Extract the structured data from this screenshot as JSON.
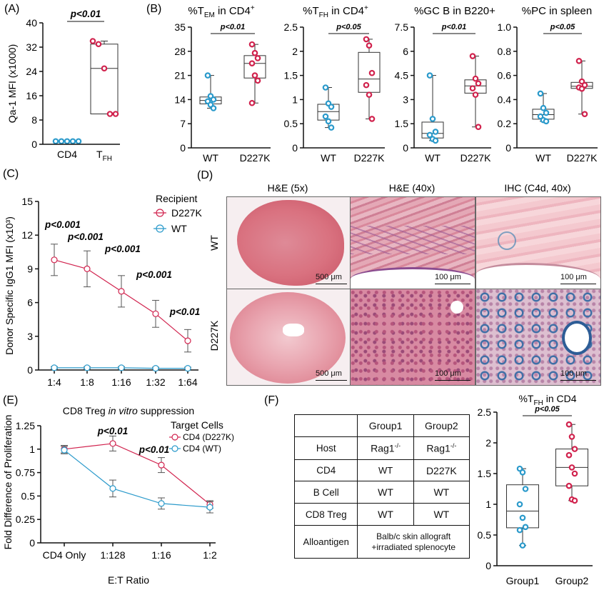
{
  "panels": {
    "A": "(A)",
    "B": "(B)",
    "C": "(C)",
    "D": "(D)",
    "E": "(E)",
    "F": "(F)"
  },
  "colors": {
    "d227k": "#d1234e",
    "wt": "#2b9acb"
  },
  "panel_d": {
    "columns": [
      "H&E (5x)",
      "H&E (40x)",
      "IHC (C4d, 40x)"
    ],
    "rows": [
      "WT",
      "D227K"
    ],
    "scale_5x": "500 μm",
    "scale_40x": "100 μm"
  },
  "panel_f_table": {
    "header": [
      "",
      "Group1",
      "Group2"
    ],
    "rows": [
      {
        "label": "Host",
        "g1": "Rag1",
        "g1_sup": "-/-",
        "g2": "Rag1",
        "g2_sup": "-/-"
      },
      {
        "label": "CD4",
        "g1": "WT",
        "g2": "D227K"
      },
      {
        "label": "B Cell",
        "g1": "WT",
        "g2": "WT"
      },
      {
        "label": "CD8 Treg",
        "g1": "WT",
        "g2": "WT"
      },
      {
        "label": "Alloantigen",
        "g12_line1": "Balb/c skin allograft",
        "g12_line2": "+irradiated splenocyte"
      }
    ]
  },
  "chart_data": [
    {
      "id": "A",
      "type": "box",
      "categories": [
        "CD4",
        "TFH"
      ],
      "ylabel": "Qa-1 MFI (x1000)",
      "ylim": [
        0,
        40
      ],
      "yticks": [
        0,
        8,
        16,
        24,
        32,
        40
      ],
      "pvalue": "p<0.01",
      "series": [
        {
          "values": [
            1,
            1,
            1,
            1,
            1
          ]
        },
        {
          "values": [
            34,
            33,
            25,
            10,
            10
          ]
        }
      ]
    },
    {
      "id": "B1",
      "type": "box",
      "title": "%TEM in CD4+",
      "categories": [
        "WT",
        "D227K"
      ],
      "ylim": [
        0,
        35
      ],
      "yticks": [
        0,
        7,
        14,
        21,
        28,
        35
      ],
      "pvalue": "p<0.01",
      "series": [
        {
          "values": [
            21,
            15,
            14,
            13.5,
            12.5,
            11.5
          ]
        },
        {
          "values": [
            30,
            27.5,
            26,
            24.5,
            21,
            19.5,
            13
          ]
        }
      ]
    },
    {
      "id": "B2",
      "type": "box",
      "title": "%TFH in CD4+",
      "categories": [
        "WT",
        "D227K"
      ],
      "ylim": [
        0,
        2.5
      ],
      "yticks": [
        0,
        0.5,
        1,
        1.5,
        2,
        2.5
      ],
      "pvalue": "p<0.05",
      "series": [
        {
          "values": [
            1.25,
            0.92,
            0.85,
            0.65,
            0.55,
            0.42
          ]
        },
        {
          "values": [
            2.25,
            2.12,
            1.55,
            1.3,
            1.1,
            0.6
          ]
        }
      ]
    },
    {
      "id": "B3",
      "type": "box",
      "title": "%GC B in B220+",
      "categories": [
        "WT",
        "D227K"
      ],
      "ylim": [
        0,
        7.5
      ],
      "yticks": [
        0,
        1.5,
        3,
        4.5,
        6,
        7.5
      ],
      "pvalue": "p<0.01",
      "series": [
        {
          "values": [
            4.5,
            1.8,
            1.0,
            0.8,
            0.55,
            0.45
          ]
        },
        {
          "values": [
            5.7,
            4.3,
            4.0,
            3.7,
            3.3,
            1.3
          ]
        }
      ]
    },
    {
      "id": "B4",
      "type": "box",
      "title": "%PC in spleen",
      "categories": [
        "WT",
        "D227K"
      ],
      "ylim": [
        0,
        1.0
      ],
      "yticks": [
        0,
        0.2,
        0.4,
        0.6,
        0.8,
        1.0
      ],
      "pvalue": "p<0.05",
      "series": [
        {
          "values": [
            0.45,
            0.33,
            0.29,
            0.26,
            0.23,
            0.22
          ]
        },
        {
          "values": [
            0.72,
            0.55,
            0.52,
            0.5,
            0.49,
            0.28
          ]
        }
      ]
    },
    {
      "id": "C",
      "type": "line",
      "ylabel": "Donor Specific IgG1 MFI (x10³)",
      "legend_title": "Recipient",
      "x": [
        "1:4",
        "1:8",
        "1:16",
        "1:32",
        "1:64"
      ],
      "ylim": [
        0,
        15
      ],
      "yticks": [
        0,
        3,
        6,
        9,
        12,
        15
      ],
      "series": [
        {
          "name": "D227K",
          "values": [
            9.8,
            9.0,
            7.0,
            5.0,
            2.6
          ],
          "err": [
            1.4,
            1.6,
            1.4,
            1.2,
            1.0
          ]
        },
        {
          "name": "WT",
          "values": [
            0.2,
            0.2,
            0.2,
            0.15,
            0.15
          ],
          "err": [
            0.1,
            0.1,
            0.1,
            0.1,
            0.1
          ]
        }
      ],
      "pvalues": [
        "p<0.001",
        "p<0.001",
        "p<0.001",
        "p<0.001",
        "p<0.01"
      ]
    },
    {
      "id": "E",
      "type": "line",
      "title_prefix": "CD8 Treg ",
      "title_italic": "in vitro",
      "title_suffix": " suppression",
      "xlabel": "E:T Ratio",
      "ylabel": "Fold Difference of Proliferation",
      "legend_title": "Target Cells",
      "x": [
        "CD4 Only",
        "1:128",
        "1:16",
        "1:2"
      ],
      "ylim": [
        0,
        1.25
      ],
      "yticks": [
        0,
        0.25,
        0.5,
        0.75,
        1,
        1.25
      ],
      "series": [
        {
          "name": "CD4 (D227K)",
          "values": [
            1.0,
            1.06,
            0.83,
            0.41
          ],
          "err": [
            0.04,
            0.08,
            0.08,
            0.04
          ]
        },
        {
          "name": "CD4 (WT)",
          "values": [
            0.99,
            0.58,
            0.42,
            0.38
          ],
          "err": [
            0.04,
            0.09,
            0.06,
            0.06
          ]
        }
      ],
      "pvalues": [
        "p<0.01",
        "p<0.01"
      ]
    },
    {
      "id": "F",
      "type": "box",
      "title": "%TFH in CD4",
      "categories": [
        "Group1",
        "Group2"
      ],
      "ylim": [
        0,
        2.5
      ],
      "yticks": [
        0,
        0.5,
        1,
        1.5,
        2,
        2.5
      ],
      "pvalue": "p<0.05",
      "series": [
        {
          "values": [
            1.58,
            1.52,
            1.25,
            1.0,
            0.78,
            0.63,
            0.58,
            0.33
          ]
        },
        {
          "values": [
            2.3,
            2.1,
            1.9,
            1.8,
            1.6,
            1.5,
            1.3,
            1.08,
            1.06
          ]
        }
      ]
    }
  ]
}
